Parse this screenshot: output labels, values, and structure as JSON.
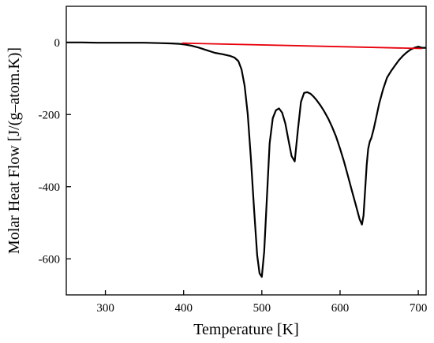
{
  "chart_data": {
    "type": "line",
    "title": "",
    "xlabel": "Temperature [K]",
    "ylabel": "Molar Heat Flow [J/(g–atom.K)]",
    "xlim": [
      250,
      710
    ],
    "ylim": [
      -700,
      100
    ],
    "x_ticks": [
      300,
      400,
      500,
      600,
      700
    ],
    "y_ticks": [
      0,
      -200,
      -400,
      -600
    ],
    "x_tick_labels": [
      "300",
      "400",
      "500",
      "600",
      "700"
    ],
    "y_tick_labels": [
      "0",
      "-200",
      "-400",
      "-600"
    ],
    "grid": false,
    "legend": "none",
    "series": [
      {
        "color": "#000000",
        "x": [
          250,
          270,
          290,
          310,
          330,
          350,
          370,
          385,
          395,
          402,
          410,
          420,
          430,
          440,
          450,
          460,
          465,
          470,
          474,
          478,
          482,
          486,
          490,
          494,
          497,
          500,
          503,
          506,
          510,
          514,
          518,
          522,
          526,
          530,
          534,
          538,
          542,
          546,
          550,
          554,
          558,
          562,
          566,
          570,
          575,
          580,
          585,
          590,
          595,
          600,
          605,
          610,
          615,
          620,
          625,
          628,
          630,
          632,
          634,
          636,
          638,
          640,
          643,
          646,
          650,
          655,
          660,
          665,
          670,
          675,
          680,
          685,
          690,
          695,
          700,
          705,
          710
        ],
        "y": [
          0,
          0,
          -1,
          -1,
          -1,
          -1,
          -2,
          -3,
          -4,
          -6,
          -9,
          -15,
          -22,
          -29,
          -33,
          -38,
          -42,
          -52,
          -75,
          -120,
          -200,
          -320,
          -460,
          -590,
          -640,
          -650,
          -580,
          -450,
          -280,
          -210,
          -188,
          -183,
          -195,
          -225,
          -270,
          -315,
          -330,
          -245,
          -165,
          -140,
          -138,
          -142,
          -150,
          -160,
          -175,
          -192,
          -212,
          -235,
          -262,
          -295,
          -330,
          -370,
          -410,
          -450,
          -490,
          -505,
          -480,
          -410,
          -340,
          -295,
          -275,
          -265,
          -240,
          -210,
          -170,
          -130,
          -98,
          -80,
          -65,
          -50,
          -38,
          -28,
          -20,
          -15,
          -12,
          -15,
          -15
        ]
      },
      {
        "color": "#e8000b",
        "x": [
          398,
          705
        ],
        "y": [
          -2,
          -17
        ]
      }
    ]
  }
}
